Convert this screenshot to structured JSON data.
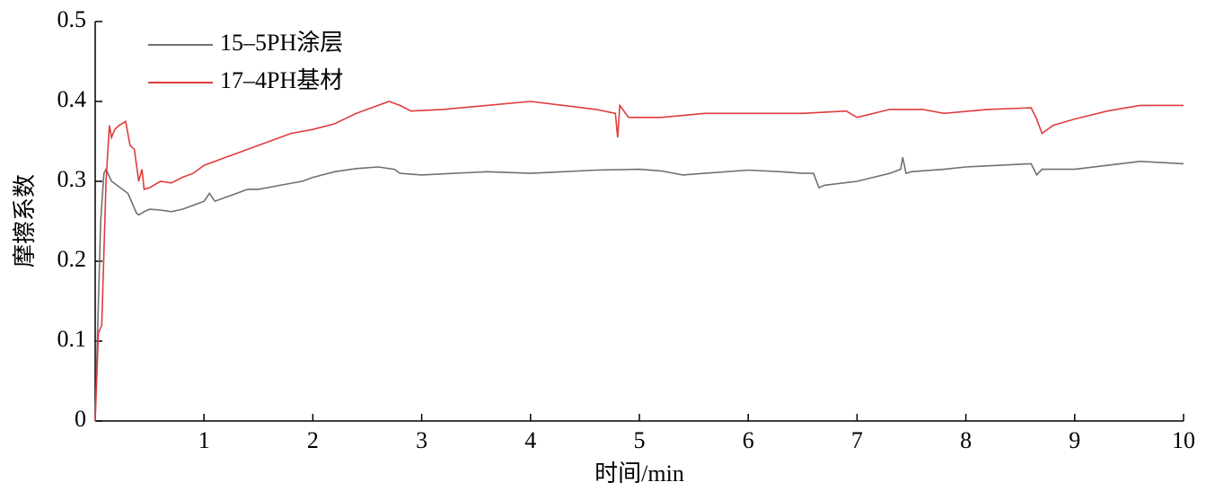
{
  "chart_data": {
    "type": "line",
    "x_label": "时间/min",
    "y_label": "摩擦系数",
    "xlim": [
      0,
      10
    ],
    "xticks": [
      1,
      2,
      3,
      4,
      5,
      6,
      7,
      8,
      9,
      10
    ],
    "ylim": [
      0,
      0.5
    ],
    "yticks": [
      0,
      0.1,
      0.2,
      0.3,
      0.4,
      0.5
    ],
    "grid": false,
    "legend": "upper-left",
    "series": [
      {
        "name": "15–5PH涂层",
        "color": "#707070",
        "x": [
          0,
          0.02,
          0.05,
          0.08,
          0.1,
          0.15,
          0.2,
          0.3,
          0.38,
          0.4,
          0.45,
          0.5,
          0.6,
          0.7,
          0.8,
          0.9,
          1.0,
          1.05,
          1.1,
          1.2,
          1.3,
          1.4,
          1.5,
          1.7,
          1.9,
          2.0,
          2.2,
          2.4,
          2.6,
          2.75,
          2.8,
          3.0,
          3.3,
          3.6,
          4.0,
          4.3,
          4.6,
          5.0,
          5.2,
          5.4,
          5.6,
          6.0,
          6.3,
          6.5,
          6.6,
          6.65,
          6.7,
          7.0,
          7.3,
          7.4,
          7.42,
          7.45,
          7.5,
          7.8,
          8.0,
          8.3,
          8.6,
          8.65,
          8.7,
          9.0,
          9.3,
          9.6,
          10
        ],
        "values": [
          0,
          0.1,
          0.25,
          0.31,
          0.315,
          0.3,
          0.295,
          0.285,
          0.26,
          0.258,
          0.262,
          0.265,
          0.264,
          0.262,
          0.265,
          0.27,
          0.275,
          0.285,
          0.275,
          0.28,
          0.285,
          0.29,
          0.29,
          0.295,
          0.3,
          0.305,
          0.312,
          0.316,
          0.318,
          0.315,
          0.31,
          0.308,
          0.31,
          0.312,
          0.31,
          0.312,
          0.314,
          0.315,
          0.313,
          0.308,
          0.31,
          0.314,
          0.312,
          0.31,
          0.31,
          0.292,
          0.295,
          0.3,
          0.31,
          0.315,
          0.33,
          0.31,
          0.312,
          0.315,
          0.318,
          0.32,
          0.322,
          0.308,
          0.315,
          0.315,
          0.32,
          0.325,
          0.322
        ]
      },
      {
        "name": "17–4PH基材",
        "color": "#e03c3c",
        "x": [
          0,
          0.03,
          0.06,
          0.1,
          0.13,
          0.15,
          0.18,
          0.22,
          0.28,
          0.32,
          0.36,
          0.4,
          0.43,
          0.45,
          0.5,
          0.6,
          0.7,
          0.8,
          0.9,
          1.0,
          1.2,
          1.4,
          1.6,
          1.8,
          2.0,
          2.2,
          2.4,
          2.6,
          2.7,
          2.8,
          2.9,
          3.2,
          3.6,
          4.0,
          4.3,
          4.6,
          4.78,
          4.8,
          4.82,
          4.9,
          5.2,
          5.6,
          6.0,
          6.5,
          6.9,
          7.0,
          7.3,
          7.6,
          7.8,
          8.2,
          8.6,
          8.65,
          8.7,
          8.8,
          9.0,
          9.3,
          9.6,
          10
        ],
        "values": [
          0,
          0.11,
          0.12,
          0.3,
          0.37,
          0.355,
          0.365,
          0.37,
          0.375,
          0.345,
          0.34,
          0.3,
          0.315,
          0.29,
          0.292,
          0.3,
          0.298,
          0.305,
          0.31,
          0.32,
          0.33,
          0.34,
          0.35,
          0.36,
          0.365,
          0.372,
          0.385,
          0.395,
          0.4,
          0.395,
          0.388,
          0.39,
          0.395,
          0.4,
          0.395,
          0.39,
          0.385,
          0.355,
          0.395,
          0.38,
          0.38,
          0.385,
          0.385,
          0.385,
          0.388,
          0.38,
          0.39,
          0.39,
          0.385,
          0.39,
          0.392,
          0.378,
          0.36,
          0.37,
          0.378,
          0.388,
          0.395,
          0.395
        ]
      }
    ]
  }
}
